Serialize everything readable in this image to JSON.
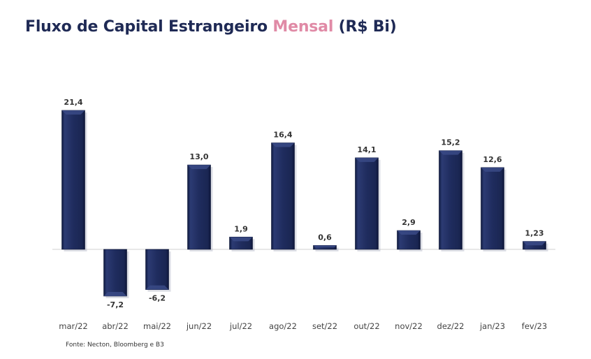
{
  "title": {
    "part1": "Fluxo de Capital Estrangeiro ",
    "highlight": "Mensal",
    "part2": " (R$ Bi)"
  },
  "colors": {
    "title": "#1f2a55",
    "highlight": "#e08aa6",
    "bar": "#1f2a5a",
    "bar_edge": "#31417a",
    "axis": "#d0d0d0"
  },
  "chart_data": {
    "type": "bar",
    "categories": [
      "mar/22",
      "abr/22",
      "mai/22",
      "jun/22",
      "jul/22",
      "ago/22",
      "set/22",
      "out/22",
      "nov/22",
      "dez/22",
      "jan/23",
      "fev/23"
    ],
    "values": [
      21.4,
      -7.2,
      -6.2,
      13.0,
      1.9,
      16.4,
      0.6,
      14.1,
      2.9,
      15.2,
      12.6,
      1.23
    ],
    "data_labels": [
      "21,4",
      "-7,2",
      "-6,2",
      "13,0",
      "1,9",
      "16,4",
      "0,6",
      "14,1",
      "2,9",
      "15,2",
      "12,6",
      "1,23"
    ],
    "ylim": [
      -8,
      22
    ],
    "grid": false,
    "legend": false
  },
  "source": "Fonte: Necton, Bloomberg e B3"
}
